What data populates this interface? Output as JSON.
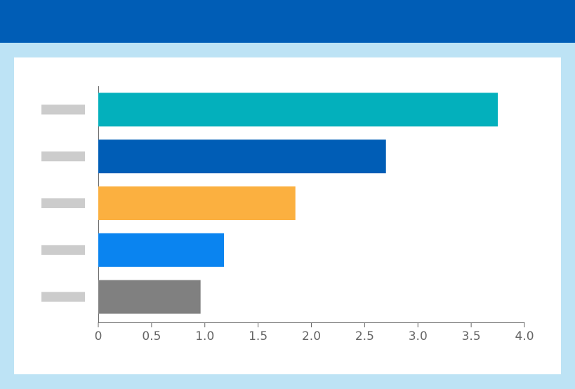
{
  "chart_data": {
    "type": "bar",
    "orientation": "horizontal",
    "categories": [
      null,
      null,
      null,
      null,
      null
    ],
    "values": [
      3.75,
      2.7,
      1.85,
      1.18,
      0.96
    ],
    "colors": [
      "#03b0bc",
      "#005db6",
      "#fbb040",
      "#0a84f0",
      "#808080"
    ],
    "xlim": [
      0,
      4
    ],
    "xticks": [
      0,
      0.5,
      {
        "value": 1,
        "label": "1.0"
      },
      1.5,
      {
        "value": 2,
        "label": "2.0"
      },
      2.5,
      {
        "value": 3,
        "label": "3.0"
      },
      3.5,
      {
        "value": 4,
        "label": "4.0"
      }
    ]
  }
}
